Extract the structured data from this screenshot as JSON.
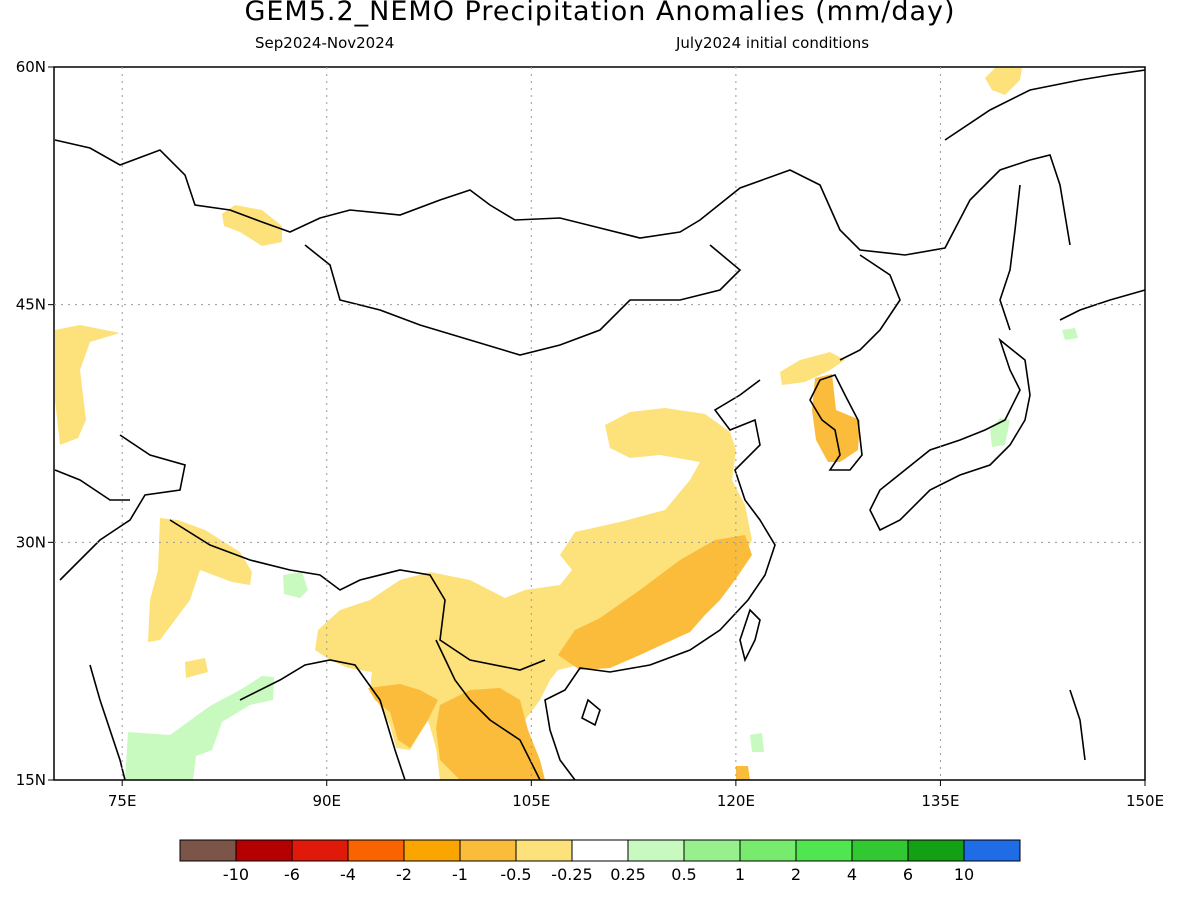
{
  "title": "GEM5.2_NEMO Precipitation Anomalies (mm/day)",
  "period": "Sep2024-Nov2024",
  "initial_conditions": "July2024 initial conditions",
  "map": {
    "lon_range": [
      70,
      150
    ],
    "lat_range": [
      15,
      60
    ],
    "lon_ticks": [
      "75E",
      "90E",
      "105E",
      "120E",
      "135E",
      "150E"
    ],
    "lat_ticks": [
      "60N",
      "45N",
      "30N",
      "15N"
    ],
    "grid": "dotted"
  },
  "colorbar": {
    "labels": [
      "-10",
      "-6",
      "-4",
      "-2",
      "-1",
      "-0.5",
      "-0.25",
      "0.25",
      "0.5",
      "1",
      "2",
      "4",
      "6",
      "10"
    ],
    "colors": [
      "#7a5548",
      "#b40000",
      "#e01a0a",
      "#fa6400",
      "#fba500",
      "#fbbc3c",
      "#fde17a",
      "#ffffff",
      "#c8fac0",
      "#96f08c",
      "#78eb6e",
      "#50e650",
      "#32c832",
      "#14a014",
      "#1f6de6"
    ]
  }
}
